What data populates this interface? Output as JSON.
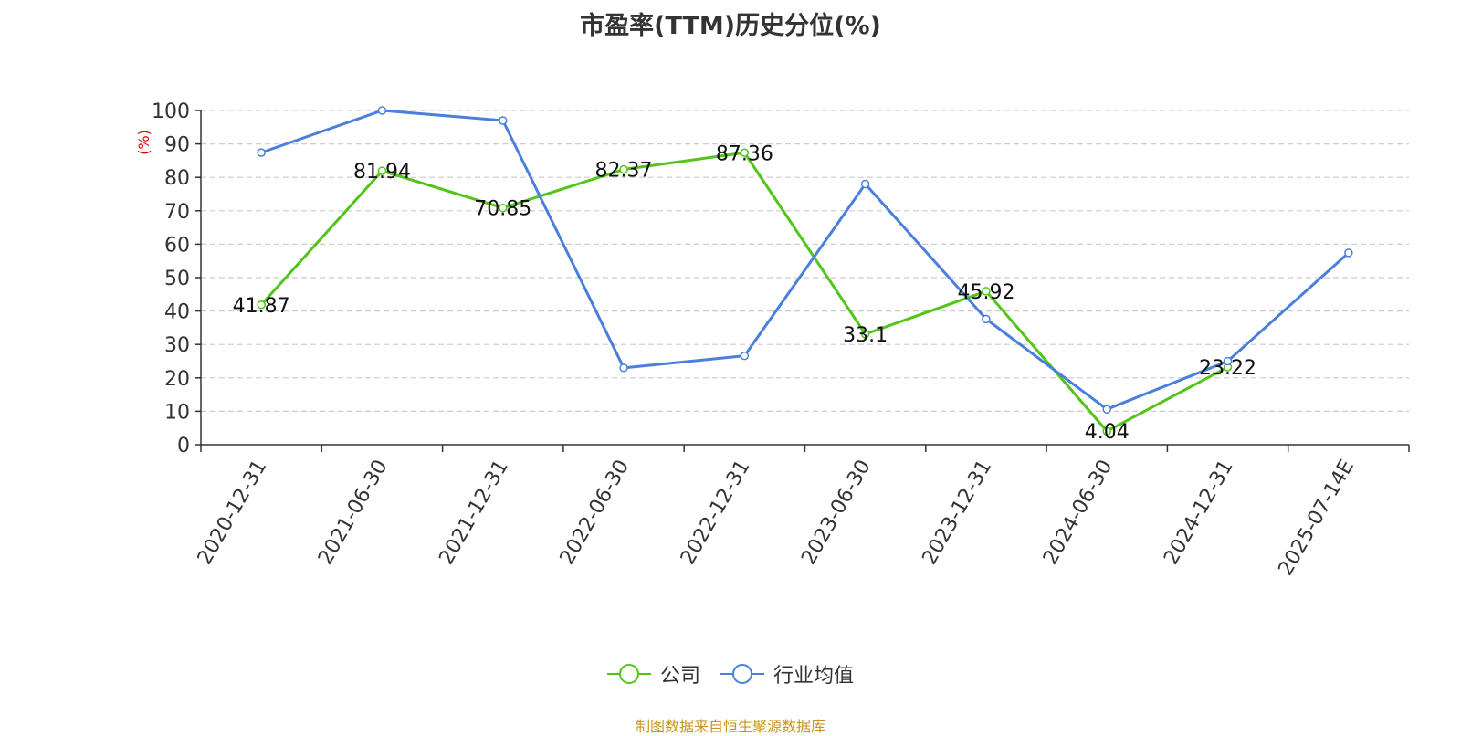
{
  "chart_data": {
    "type": "line",
    "title": "市盈率(TTM)历史分位(%)",
    "ylabel": "(%)",
    "xlabel": "",
    "categories": [
      "2020-12-31",
      "2021-06-30",
      "2021-12-31",
      "2022-06-30",
      "2022-12-31",
      "2023-06-30",
      "2023-12-31",
      "2024-06-30",
      "2024-12-31",
      "2025-07-14E"
    ],
    "ylim": [
      0,
      100
    ],
    "yticks": [
      0,
      10,
      20,
      30,
      40,
      50,
      60,
      70,
      80,
      90,
      100
    ],
    "grid": true,
    "legend_position": "bottom",
    "series": [
      {
        "name": "公司",
        "color": "#52c41a",
        "values": [
          41.87,
          81.94,
          70.85,
          82.37,
          87.36,
          33.1,
          45.92,
          4.04,
          23.22,
          null
        ],
        "labels": [
          "41.87",
          "81.94",
          "70.85",
          "82.37",
          "87.36",
          "33.1",
          "45.92",
          "4.04",
          "23.22",
          ""
        ]
      },
      {
        "name": "行业均值",
        "color": "#4a7fdc",
        "values": [
          87.4,
          100,
          97,
          23,
          26.6,
          78,
          37.6,
          10.6,
          25,
          57.4
        ],
        "labels": []
      }
    ]
  },
  "source": "制图数据来自恒生聚源数据库"
}
